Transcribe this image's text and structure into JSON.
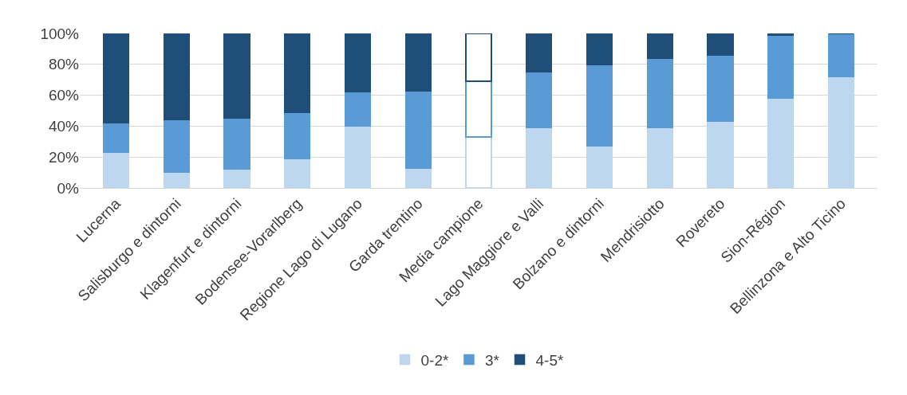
{
  "chart_data": {
    "type": "bar",
    "stacked": true,
    "categories": [
      "Lucerna",
      "Salisburgo e dintorni",
      "Klagenfurt e dintorni",
      "Bodensee-Vorarlberg",
      "Regione Lago di Lugano",
      "Garda trentino",
      "Media campione",
      "Lago Maggiore e Valli",
      "Bolzano e dintorni",
      "Mendrisiotto",
      "Rovereto",
      "Sion-Région",
      "Bellinzona e Alto Ticino"
    ],
    "series": [
      {
        "name": "0-2*",
        "color": "#bdd7ee",
        "colors": [
          "#bdd7ee",
          "#bdd7ee",
          "#bdd7ee",
          "#bdd7ee",
          "#bdd7ee",
          "#bdd7ee",
          "#ffffff",
          "#bdd7ee",
          "#bdd7ee",
          "#bdd7ee",
          "#bdd7ee",
          "#bdd7ee",
          "#bdd7ee"
        ],
        "values": [
          23,
          10,
          12,
          19,
          40,
          13,
          33,
          39,
          27,
          39,
          43,
          58,
          72
        ]
      },
      {
        "name": "3*",
        "color": "#5b9bd5",
        "colors": [
          "#5b9bd5",
          "#5b9bd5",
          "#5b9bd5",
          "#5b9bd5",
          "#5b9bd5",
          "#5b9bd5",
          "#ffffff",
          "#5b9bd5",
          "#5b9bd5",
          "#5b9bd5",
          "#5b9bd5",
          "#5b9bd5",
          "#5b9bd5"
        ],
        "values": [
          19,
          34,
          33,
          30,
          22,
          50,
          36,
          36,
          53,
          45,
          43,
          41,
          28
        ]
      },
      {
        "name": "4-5*",
        "color": "#1f4e79",
        "colors": [
          "#1f4e79",
          "#1f4e79",
          "#1f4e79",
          "#1f4e79",
          "#1f4e79",
          "#1f4e79",
          "#ffffff",
          "#1f4e79",
          "#1f4e79",
          "#1f4e79",
          "#1f4e79",
          "#1f4e79",
          "#1f4e79"
        ],
        "values": [
          58,
          56,
          55,
          51,
          38,
          37,
          31,
          25,
          20,
          16,
          14,
          1,
          0
        ]
      }
    ],
    "ylim": [
      0,
      100
    ],
    "yticks": [
      {
        "value": 0,
        "label": "0%"
      },
      {
        "value": 20,
        "label": "20%"
      },
      {
        "value": 40,
        "label": "40%"
      },
      {
        "value": 60,
        "label": "60%"
      },
      {
        "value": 80,
        "label": "80%"
      },
      {
        "value": 100,
        "label": "100%"
      }
    ],
    "grid": "y",
    "legend": "bottom"
  }
}
